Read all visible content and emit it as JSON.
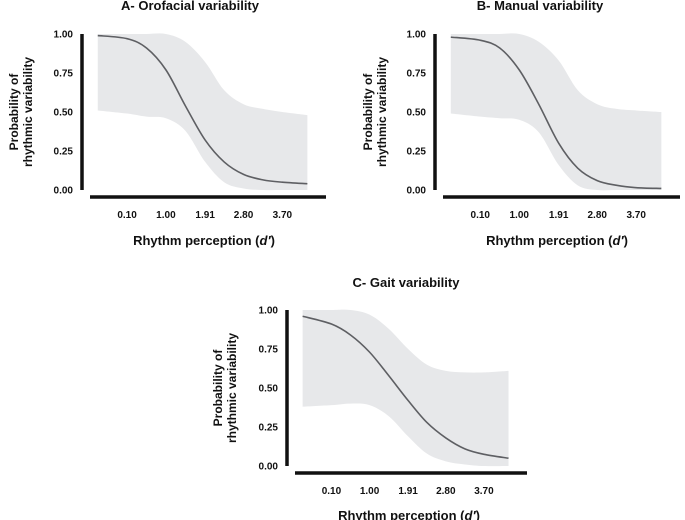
{
  "colors": {
    "band": "#e7e8ea",
    "line": "#5e5f63",
    "axis": "#111111",
    "text": "#111111"
  },
  "chart_data": [
    {
      "type": "line",
      "title": "A- Orofacial variability",
      "xlabel_main": "Rhythm perception (",
      "xlabel_italic": "d′",
      "xlabel_close": ")",
      "ylabel_lines": [
        "Probability of",
        "rhythmic variability"
      ],
      "xlim": [
        -0.76,
        4.48
      ],
      "ylim": [
        0,
        1
      ],
      "xticks": [
        0.1,
        1.0,
        1.91,
        2.8,
        3.7
      ],
      "xtick_labels": [
        "0.10",
        "1.00",
        "1.91",
        "2.80",
        "3.70"
      ],
      "yticks": [
        0,
        0.25,
        0.5,
        0.75,
        1
      ],
      "ytick_labels": [
        "0.00",
        "0.25",
        "0.50",
        "0.75",
        "1.00"
      ],
      "series": [
        {
          "name": "fit",
          "x": [
            -0.58,
            0.1,
            0.55,
            1.0,
            1.45,
            1.91,
            2.35,
            2.8,
            3.25,
            3.7,
            4.28
          ],
          "y": [
            0.99,
            0.97,
            0.91,
            0.77,
            0.54,
            0.32,
            0.18,
            0.1,
            0.065,
            0.05,
            0.04
          ],
          "lower": [
            0.51,
            0.49,
            0.47,
            0.46,
            0.38,
            0.18,
            0.05,
            0.01,
            0.0,
            0.0,
            0.0
          ],
          "upper": [
            1.0,
            1.0,
            1.0,
            1.0,
            0.95,
            0.82,
            0.64,
            0.55,
            0.52,
            0.5,
            0.48
          ]
        }
      ]
    },
    {
      "type": "line",
      "title": "B- Manual variability",
      "xlabel_main": "Rhythm perception (",
      "xlabel_italic": "d′",
      "xlabel_close": ")",
      "ylabel_lines": [
        "Probability of",
        "rhythmic variability"
      ],
      "xlim": [
        -0.76,
        4.48
      ],
      "ylim": [
        0,
        1
      ],
      "xticks": [
        0.1,
        1.0,
        1.91,
        2.8,
        3.7
      ],
      "xtick_labels": [
        "0.10",
        "1.00",
        "1.91",
        "2.80",
        "3.70"
      ],
      "yticks": [
        0,
        0.25,
        0.5,
        0.75,
        1
      ],
      "ytick_labels": [
        "0.00",
        "0.25",
        "0.50",
        "0.75",
        "1.00"
      ],
      "series": [
        {
          "name": "fit",
          "x": [
            -0.58,
            0.1,
            0.55,
            1.0,
            1.45,
            1.91,
            2.35,
            2.8,
            3.25,
            3.7,
            4.28
          ],
          "y": [
            0.98,
            0.96,
            0.91,
            0.77,
            0.55,
            0.3,
            0.14,
            0.06,
            0.03,
            0.015,
            0.01
          ],
          "lower": [
            0.49,
            0.47,
            0.46,
            0.45,
            0.37,
            0.16,
            0.03,
            0.0,
            0.0,
            0.0,
            0.0
          ],
          "upper": [
            1.0,
            1.0,
            1.0,
            1.0,
            0.95,
            0.83,
            0.64,
            0.55,
            0.52,
            0.51,
            0.5
          ]
        }
      ]
    },
    {
      "type": "line",
      "title": "C- Gait variability",
      "xlabel_main": "Rhythm perception (",
      "xlabel_italic": "d′",
      "xlabel_close": ")",
      "ylabel_lines": [
        "Probability of",
        "rhythmic variability"
      ],
      "xlim": [
        -0.76,
        4.48
      ],
      "ylim": [
        0,
        1
      ],
      "xticks": [
        0.1,
        1.0,
        1.91,
        2.8,
        3.7
      ],
      "xtick_labels": [
        "0.10",
        "1.00",
        "1.91",
        "2.80",
        "3.70"
      ],
      "yticks": [
        0,
        0.25,
        0.5,
        0.75,
        1
      ],
      "ytick_labels": [
        "0.00",
        "0.25",
        "0.50",
        "0.75",
        "1.00"
      ],
      "series": [
        {
          "name": "fit",
          "x": [
            -0.58,
            0.1,
            0.55,
            1.0,
            1.45,
            1.91,
            2.35,
            2.8,
            3.25,
            3.7,
            4.28
          ],
          "y": [
            0.96,
            0.91,
            0.84,
            0.73,
            0.58,
            0.42,
            0.28,
            0.18,
            0.11,
            0.075,
            0.05
          ],
          "lower": [
            0.38,
            0.39,
            0.4,
            0.39,
            0.32,
            0.19,
            0.08,
            0.03,
            0.01,
            0.0,
            0.0
          ],
          "upper": [
            1.0,
            1.0,
            1.0,
            0.97,
            0.88,
            0.75,
            0.65,
            0.61,
            0.6,
            0.6,
            0.61
          ]
        }
      ]
    }
  ]
}
